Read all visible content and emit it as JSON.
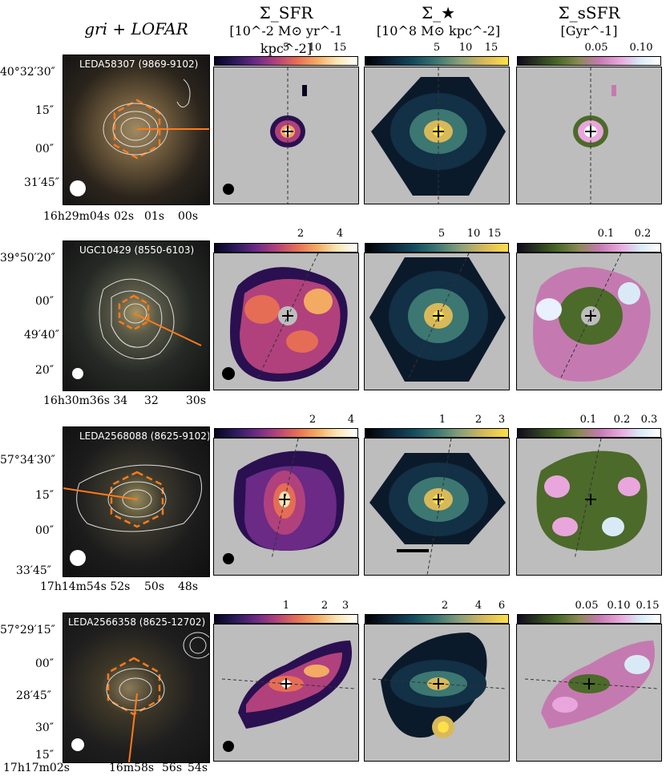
{
  "headers": {
    "col1": "gri + LOFAR",
    "col2": {
      "line1": "Σ_SFR",
      "line2": "[10^-2 M⊙ yr^-1 kpc^-2]"
    },
    "col3": {
      "line1": "Σ_★",
      "line2": "[10^8 M⊙ kpc^-2]"
    },
    "col4": {
      "line1": "Σ_sSFR",
      "line2": "[Gyr^-1]"
    }
  },
  "rows": [
    {
      "galaxy": "LEDA58307 (9869-9102)",
      "dec_labels": [
        "40°32′30″",
        "15″",
        "00″",
        "31′45″"
      ],
      "ra_labels": [
        "16h29m04s",
        "02s",
        "01s",
        "00s"
      ],
      "sfr_ticks": [
        "5",
        "10",
        "15"
      ],
      "mass_ticks": [
        "5",
        "10",
        "15"
      ],
      "ssfr_ticks": [
        "0.05",
        "0.10"
      ]
    },
    {
      "galaxy": "UGC10429 (8550-6103)",
      "dec_labels": [
        "39°50′20″",
        "00″",
        "49′40″",
        "20″"
      ],
      "ra_labels": [
        "16h30m36s 34",
        "32",
        "30s"
      ],
      "sfr_ticks": [
        "2",
        "4"
      ],
      "mass_ticks": [
        "5",
        "10",
        "15"
      ],
      "ssfr_ticks": [
        "0.1",
        "0.2"
      ]
    },
    {
      "galaxy": "LEDA2568088 (8625-9102)",
      "dec_labels": [
        "57°34′30″",
        "15″",
        "00″",
        "33′45″"
      ],
      "ra_labels": [
        "17h14m54s 52s",
        "50s",
        "48s"
      ],
      "sfr_ticks": [
        "2",
        "4"
      ],
      "mass_ticks": [
        "1",
        "2",
        "3"
      ],
      "ssfr_ticks": [
        "0.1",
        "0.2",
        "0.3"
      ]
    },
    {
      "galaxy": "LEDA2566358 (8625-12702)",
      "dec_labels": [
        "57°29′15″",
        "00″",
        "28′45″",
        "30″",
        "15″"
      ],
      "ra_labels": [
        "17h17m02s",
        "16m58s",
        "56s",
        "54s"
      ],
      "sfr_ticks": [
        "1",
        "2",
        "3"
      ],
      "mass_ticks": [
        "2",
        "4",
        "6"
      ],
      "ssfr_ticks": [
        "0.05",
        "0.10",
        "0.15"
      ]
    }
  ]
}
